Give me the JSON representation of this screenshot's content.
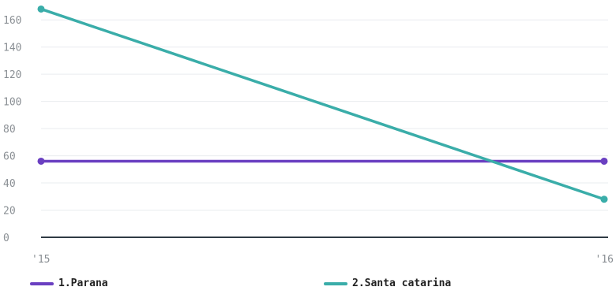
{
  "chart_data": {
    "type": "line",
    "title": "",
    "xlabel": "",
    "ylabel": "",
    "categories": [
      "'15",
      "'16"
    ],
    "ylim": [
      0,
      170
    ],
    "yticks": [
      0,
      20,
      40,
      60,
      80,
      100,
      120,
      140,
      160
    ],
    "grid": true,
    "legend_position": "bottom",
    "series": [
      {
        "name": "1.Parana",
        "color": "#6a3fc1",
        "values": [
          56,
          56
        ]
      },
      {
        "name": "2.Santa catarina",
        "color": "#3aada9",
        "values": [
          168,
          28
        ]
      }
    ]
  },
  "colors": {
    "grid": "#e9ecef",
    "baseline": "#2f3b44",
    "ticks": "#8a8f94"
  }
}
